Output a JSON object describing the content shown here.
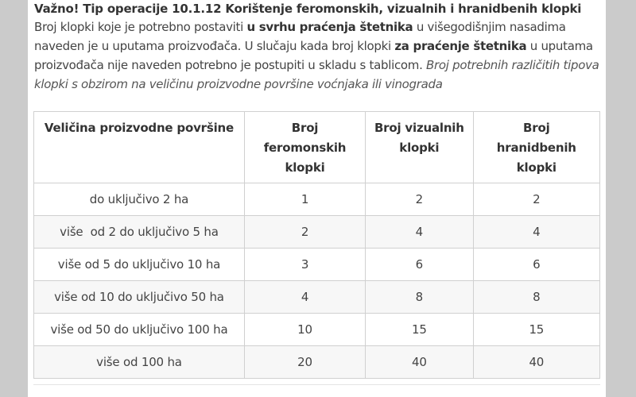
{
  "heading": "Važno! Tip operacije 10.1.12 Korištenje feromonskih, vizualnih i hranidbenih klopki",
  "intro": {
    "part1": "Broj klopki koje je potrebno postaviti ",
    "bold1": "u svrhu praćenja štetnika",
    "part2": " u višegodišnjim nasadima naveden je u uputama proizvođača. U slučaju kada broj klopki ",
    "bold2": "za praćenje štetnika",
    "part3": " u uputama proizvođača nije naveden potrebno je postupiti u skladu s tablicom. ",
    "italic": "Broj potrebnih različitih tipova klopki s obzirom na veličinu proizvodne površine voćnjaka ili vinograda"
  },
  "table": {
    "headers": [
      "Veličina proizvodne površine",
      "Broj feromonskih klopki",
      "Broj vizualnih klopki",
      "Broj hranidbenih klopki"
    ],
    "rows": [
      [
        "do uključivo 2 ha",
        "1",
        "2",
        "2"
      ],
      [
        "više  od 2 do uključivo 5 ha",
        "2",
        "4",
        "4"
      ],
      [
        "više od 5 do uključivo 10 ha",
        "3",
        "6",
        "6"
      ],
      [
        "više od 10 do uključivo 50 ha",
        "4",
        "8",
        "8"
      ],
      [
        "više od 50 do uključivo 100 ha",
        "10",
        "15",
        "15"
      ],
      [
        "više od 100 ha",
        "20",
        "40",
        "40"
      ]
    ]
  }
}
